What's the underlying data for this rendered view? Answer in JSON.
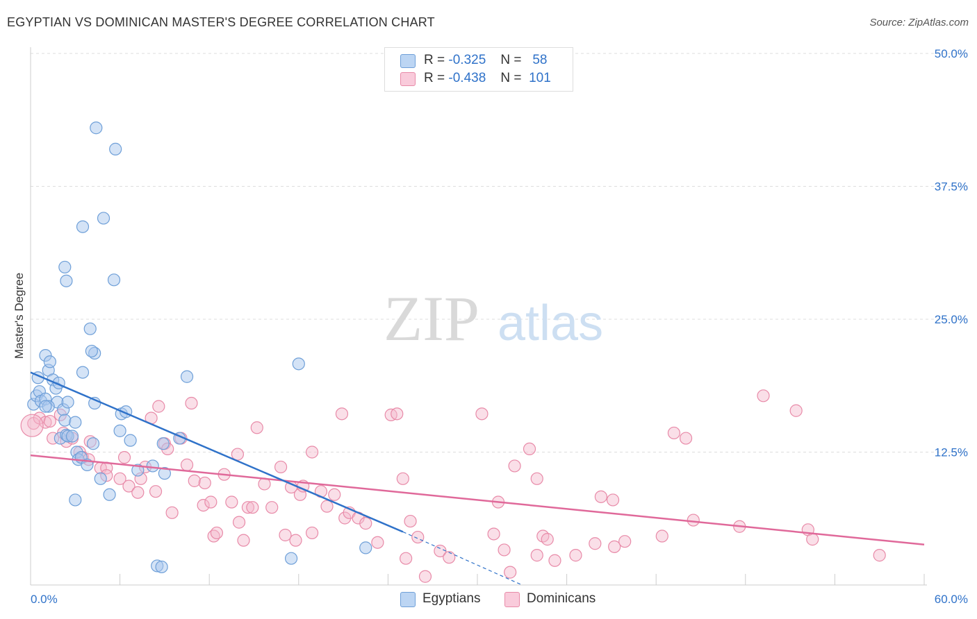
{
  "title": "EGYPTIAN VS DOMINICAN MASTER'S DEGREE CORRELATION CHART",
  "source": "Source: ZipAtlas.com",
  "watermark": {
    "zip": "ZIP",
    "atlas": "atlas"
  },
  "colors": {
    "egyptians_fill": "#a9c8ee",
    "egyptians_stroke": "#6e9fd8",
    "egyptians_line": "#2f72c9",
    "dominicans_fill": "#f5b8cc",
    "dominicans_stroke": "#e88aa8",
    "dominicans_line": "#e0699a",
    "value_text": "#2f72c9",
    "grid": "#dddddd"
  },
  "legend": {
    "egyptians": {
      "r_label": "R =",
      "r_value": "-0.325",
      "n_label": "N =",
      "n_value": "58"
    },
    "dominicans": {
      "r_label": "R =",
      "r_value": "-0.438",
      "n_label": "N =",
      "n_value": "101"
    }
  },
  "bottom_legend": {
    "egyptians": "Egyptians",
    "dominicans": "Dominicans"
  },
  "chart_data": {
    "type": "scatter",
    "title": "EGYPTIAN VS DOMINICAN MASTER'S DEGREE CORRELATION CHART",
    "ylabel": "Master's Degree",
    "xlabel": "",
    "xlim": [
      0,
      60
    ],
    "ylim": [
      0,
      50
    ],
    "x_tick_labels": [
      "0.0%",
      "60.0%"
    ],
    "y_ticks": [
      12.5,
      25.0,
      37.5,
      50.0
    ],
    "y_tick_labels": [
      "12.5%",
      "25.0%",
      "37.5%",
      "50.0%"
    ],
    "grid": true,
    "legend_position": "top-center",
    "series": [
      {
        "name": "Egyptians",
        "r": -0.325,
        "n": 58,
        "trend": {
          "x": [
            0,
            25
          ],
          "y": [
            20.0,
            5.0
          ],
          "dashed_extension_to": [
            33,
            0
          ]
        },
        "points": [
          [
            0.2,
            17.0
          ],
          [
            0.5,
            19.5
          ],
          [
            0.4,
            17.8
          ],
          [
            0.6,
            18.2
          ],
          [
            0.7,
            17.3
          ],
          [
            1.0,
            17.5
          ],
          [
            1.0,
            21.6
          ],
          [
            1.2,
            20.2
          ],
          [
            1.3,
            21.0
          ],
          [
            1.5,
            19.3
          ],
          [
            1.7,
            18.5
          ],
          [
            1.8,
            17.2
          ],
          [
            1.2,
            16.8
          ],
          [
            1.9,
            19.0
          ],
          [
            2.2,
            16.5
          ],
          [
            2.5,
            17.2
          ],
          [
            2.3,
            15.5
          ],
          [
            2.0,
            13.8
          ],
          [
            2.4,
            14.1
          ],
          [
            2.5,
            14.0
          ],
          [
            3.0,
            15.3
          ],
          [
            3.1,
            12.5
          ],
          [
            3.2,
            11.8
          ],
          [
            3.4,
            12.0
          ],
          [
            3.8,
            11.3
          ],
          [
            3.5,
            20.0
          ],
          [
            2.3,
            29.9
          ],
          [
            2.4,
            28.6
          ],
          [
            3.5,
            33.7
          ],
          [
            4.9,
            34.5
          ],
          [
            4.3,
            21.8
          ],
          [
            4.1,
            22.0
          ],
          [
            4.0,
            24.1
          ],
          [
            5.6,
            28.7
          ],
          [
            4.4,
            43.0
          ],
          [
            5.7,
            41.0
          ],
          [
            4.2,
            13.3
          ],
          [
            4.7,
            10.0
          ],
          [
            5.3,
            8.5
          ],
          [
            3.0,
            8.0
          ],
          [
            6.1,
            16.1
          ],
          [
            6.4,
            16.3
          ],
          [
            6.0,
            14.5
          ],
          [
            6.7,
            13.6
          ],
          [
            7.2,
            10.8
          ],
          [
            8.2,
            11.2
          ],
          [
            9.0,
            10.5
          ],
          [
            8.9,
            13.3
          ],
          [
            10.0,
            13.8
          ],
          [
            10.5,
            19.6
          ],
          [
            8.5,
            1.8
          ],
          [
            8.8,
            1.7
          ],
          [
            17.5,
            2.5
          ],
          [
            22.5,
            3.5
          ],
          [
            18.0,
            20.8
          ],
          [
            4.3,
            17.1
          ],
          [
            2.8,
            14.0
          ],
          [
            1.0,
            16.8
          ]
        ]
      },
      {
        "name": "Dominicans",
        "r": -0.438,
        "n": 101,
        "trend": {
          "x": [
            0,
            60
          ],
          "y": [
            12.2,
            3.8
          ]
        },
        "points": [
          [
            0.2,
            15.2
          ],
          [
            0.6,
            15.7
          ],
          [
            1.0,
            15.3
          ],
          [
            1.3,
            15.4
          ],
          [
            1.5,
            13.8
          ],
          [
            2.0,
            16.0
          ],
          [
            2.2,
            14.3
          ],
          [
            2.4,
            13.5
          ],
          [
            2.8,
            13.8
          ],
          [
            3.3,
            12.5
          ],
          [
            3.5,
            12.0
          ],
          [
            3.9,
            11.8
          ],
          [
            4.0,
            13.5
          ],
          [
            4.7,
            11.0
          ],
          [
            5.1,
            11.0
          ],
          [
            5.1,
            10.3
          ],
          [
            6.0,
            10.0
          ],
          [
            6.3,
            12.0
          ],
          [
            6.6,
            9.3
          ],
          [
            7.2,
            8.7
          ],
          [
            7.4,
            10.0
          ],
          [
            7.7,
            11.1
          ],
          [
            8.1,
            15.7
          ],
          [
            8.4,
            8.8
          ],
          [
            8.6,
            16.8
          ],
          [
            9.0,
            13.3
          ],
          [
            9.2,
            12.8
          ],
          [
            9.5,
            6.8
          ],
          [
            10.1,
            13.8
          ],
          [
            10.5,
            11.3
          ],
          [
            10.8,
            17.1
          ],
          [
            11.0,
            9.8
          ],
          [
            11.6,
            7.5
          ],
          [
            11.7,
            9.6
          ],
          [
            12.1,
            7.8
          ],
          [
            12.3,
            4.6
          ],
          [
            12.5,
            4.9
          ],
          [
            13.0,
            10.4
          ],
          [
            13.5,
            7.8
          ],
          [
            13.9,
            12.3
          ],
          [
            14.0,
            5.9
          ],
          [
            14.3,
            4.2
          ],
          [
            14.6,
            7.3
          ],
          [
            14.9,
            7.3
          ],
          [
            15.2,
            14.8
          ],
          [
            15.7,
            9.5
          ],
          [
            16.2,
            7.3
          ],
          [
            16.8,
            11.1
          ],
          [
            17.1,
            4.7
          ],
          [
            17.5,
            9.2
          ],
          [
            17.8,
            4.2
          ],
          [
            18.1,
            8.5
          ],
          [
            18.3,
            9.3
          ],
          [
            18.9,
            4.9
          ],
          [
            18.9,
            12.5
          ],
          [
            19.5,
            8.8
          ],
          [
            19.9,
            7.4
          ],
          [
            20.4,
            8.5
          ],
          [
            20.9,
            16.1
          ],
          [
            21.1,
            6.3
          ],
          [
            21.4,
            6.8
          ],
          [
            22.0,
            6.3
          ],
          [
            22.5,
            5.8
          ],
          [
            23.3,
            4.0
          ],
          [
            24.2,
            16.0
          ],
          [
            24.6,
            16.1
          ],
          [
            25.0,
            10.0
          ],
          [
            25.2,
            2.5
          ],
          [
            25.5,
            6.0
          ],
          [
            26.5,
            0.8
          ],
          [
            27.5,
            3.2
          ],
          [
            28.1,
            2.6
          ],
          [
            30.3,
            16.1
          ],
          [
            31.1,
            4.8
          ],
          [
            31.4,
            7.8
          ],
          [
            31.8,
            3.3
          ],
          [
            32.2,
            1.2
          ],
          [
            32.5,
            11.2
          ],
          [
            33.5,
            12.8
          ],
          [
            34.0,
            2.8
          ],
          [
            34.4,
            4.6
          ],
          [
            34.7,
            4.3
          ],
          [
            35.2,
            2.3
          ],
          [
            36.6,
            2.8
          ],
          [
            37.9,
            3.9
          ],
          [
            38.3,
            8.3
          ],
          [
            39.1,
            8.0
          ],
          [
            39.2,
            3.6
          ],
          [
            39.9,
            4.1
          ],
          [
            42.4,
            4.6
          ],
          [
            43.2,
            14.3
          ],
          [
            44.0,
            13.8
          ],
          [
            44.5,
            6.1
          ],
          [
            47.6,
            5.5
          ],
          [
            49.2,
            17.8
          ],
          [
            51.4,
            16.4
          ],
          [
            52.2,
            5.2
          ],
          [
            52.5,
            4.3
          ],
          [
            57.0,
            2.8
          ],
          [
            34.0,
            10.0
          ],
          [
            26.0,
            4.5
          ]
        ]
      }
    ]
  }
}
